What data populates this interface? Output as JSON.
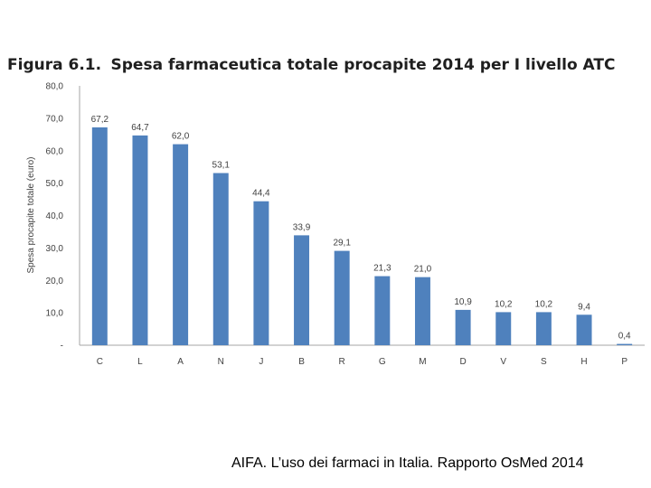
{
  "chart_data": {
    "type": "bar",
    "title_prefix": "Figura 6.1.",
    "title": "Spesa farmaceutica totale procapite 2014 per I livello ATC",
    "ylabel": "Spesa procapite totale (euro)",
    "xlabel": "",
    "ylim": [
      0,
      80
    ],
    "yticks": [
      "-",
      "10,0",
      "20,0",
      "30,0",
      "40,0",
      "50,0",
      "60,0",
      "70,0",
      "80,0"
    ],
    "grid": false,
    "bar_color": "#4f81bd",
    "categories": [
      "C",
      "L",
      "A",
      "N",
      "J",
      "B",
      "R",
      "G",
      "M",
      "D",
      "V",
      "S",
      "H",
      "P"
    ],
    "values": [
      67.2,
      64.7,
      62.0,
      53.1,
      44.4,
      33.9,
      29.1,
      21.3,
      21.0,
      10.9,
      10.2,
      10.2,
      9.4,
      0.4
    ],
    "data_labels": [
      "67,2",
      "64,7",
      "62,0",
      "53,1",
      "44,4",
      "33,9",
      "29,1",
      "21,3",
      "21,0",
      "10,9",
      "10,2",
      "10,2",
      "9,4",
      "0,4"
    ]
  },
  "caption": "AIFA. L’uso dei farmaci in Italia. Rapporto OsMed 2014"
}
